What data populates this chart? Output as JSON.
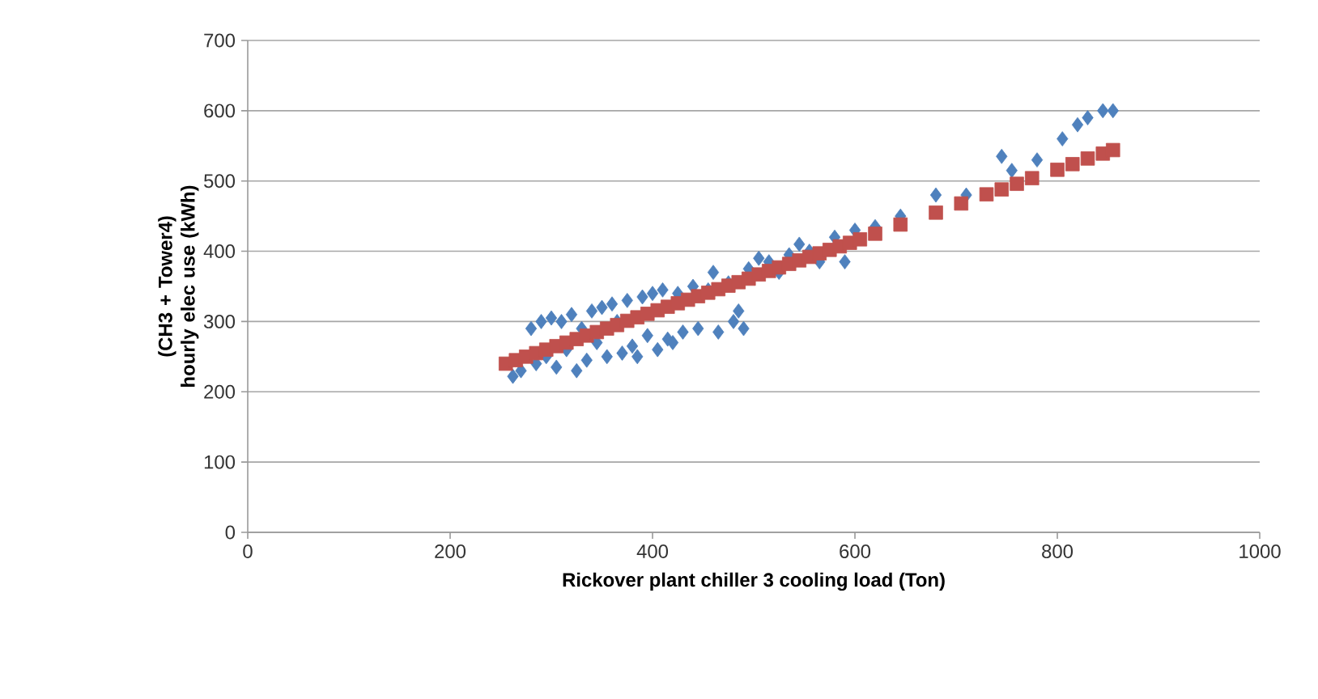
{
  "chart_data": {
    "type": "scatter",
    "xlabel": "Rickover  plant chiller  3 cooling  load  (Ton)",
    "ylabel": "(CH3 + Tower4) hourly elec use (kWh)",
    "xlim": [
      0,
      1000
    ],
    "xticks": [
      0,
      200,
      400,
      600,
      800,
      1000
    ],
    "ylim": [
      0,
      700
    ],
    "yticks": [
      0,
      100,
      200,
      300,
      400,
      500,
      600,
      700
    ],
    "grid": "y",
    "series": [
      {
        "color": "#4f81bd",
        "marker": "diamond",
        "x": [
          262,
          270,
          280,
          285,
          290,
          295,
          300,
          305,
          310,
          315,
          320,
          325,
          330,
          335,
          340,
          345,
          350,
          355,
          360,
          365,
          370,
          375,
          380,
          385,
          390,
          395,
          400,
          405,
          410,
          415,
          420,
          425,
          430,
          440,
          445,
          455,
          460,
          465,
          475,
          480,
          485,
          490,
          495,
          505,
          515,
          525,
          535,
          545,
          555,
          565,
          580,
          590,
          600,
          620,
          645,
          680,
          710,
          745,
          755,
          780,
          805,
          820,
          830,
          845,
          855
        ],
        "values": [
          222,
          230,
          290,
          240,
          300,
          250,
          305,
          235,
          300,
          260,
          310,
          230,
          290,
          245,
          315,
          270,
          320,
          250,
          325,
          300,
          255,
          330,
          265,
          250,
          335,
          280,
          340,
          260,
          345,
          275,
          270,
          340,
          285,
          350,
          290,
          345,
          370,
          285,
          355,
          300,
          315,
          290,
          375,
          390,
          385,
          370,
          395,
          410,
          400,
          385,
          420,
          385,
          430,
          435,
          450,
          480,
          480,
          535,
          515,
          530,
          560,
          580,
          590,
          600,
          600
        ]
      },
      {
        "color": "#c0504d",
        "marker": "square",
        "x": [
          255,
          265,
          275,
          285,
          295,
          305,
          315,
          325,
          335,
          345,
          355,
          365,
          375,
          385,
          395,
          405,
          415,
          425,
          435,
          445,
          455,
          465,
          475,
          485,
          495,
          505,
          515,
          525,
          535,
          545,
          555,
          565,
          575,
          585,
          595,
          605,
          620,
          645,
          680,
          705,
          730,
          745,
          760,
          775,
          800,
          815,
          830,
          845,
          855
        ],
        "values": [
          240,
          245,
          250,
          255,
          260,
          265,
          270,
          275,
          280,
          285,
          290,
          295,
          301,
          306,
          311,
          316,
          321,
          326,
          331,
          336,
          341,
          346,
          351,
          356,
          361,
          367,
          372,
          377,
          382,
          387,
          392,
          397,
          402,
          407,
          412,
          417,
          425,
          438,
          455,
          468,
          481,
          488,
          496,
          504,
          516,
          524,
          532,
          539,
          544
        ]
      }
    ]
  }
}
